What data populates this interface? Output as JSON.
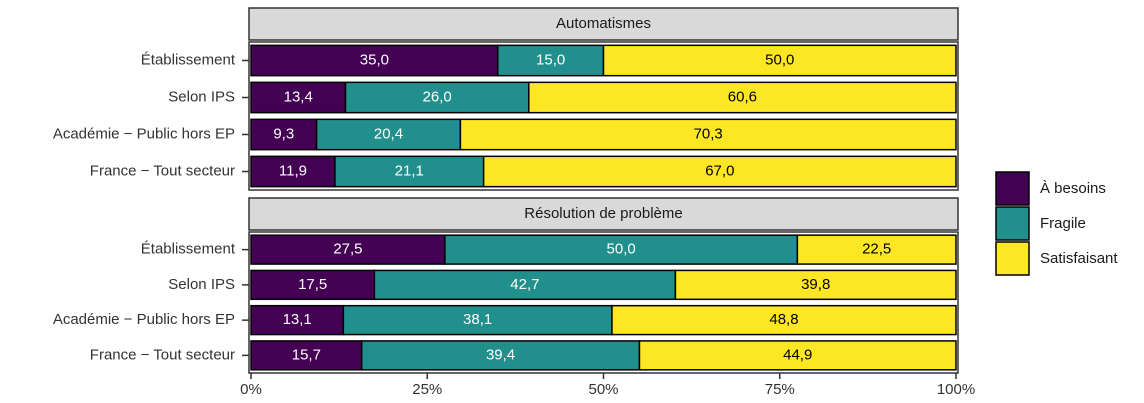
{
  "chart_data": {
    "type": "bar",
    "orientation": "horizontal",
    "stacked": true,
    "categories": [
      "Établissement",
      "Selon IPS",
      "Académie − Public hors EP",
      "France − Tout secteur"
    ],
    "series": [
      {
        "name": "À besoins",
        "color": "#440154",
        "label_color": "#ffffff"
      },
      {
        "name": "Fragile",
        "color": "#21908C",
        "label_color": "#ffffff"
      },
      {
        "name": "Satisfaisant",
        "color": "#FDE725",
        "label_color": "#000000"
      }
    ],
    "facets": [
      {
        "title": "Automatismes",
        "series": [
          {
            "values": [
              35.0,
              13.4,
              9.3,
              11.9
            ],
            "value_labels": [
              "35,0",
              "13,4",
              "9,3",
              "11,9"
            ]
          },
          {
            "values": [
              15.0,
              26.0,
              20.4,
              21.1
            ],
            "value_labels": [
              "15,0",
              "26,0",
              "20,4",
              "21,1"
            ]
          },
          {
            "values": [
              50.0,
              60.6,
              70.3,
              67.0
            ],
            "value_labels": [
              "50,0",
              "60,6",
              "70,3",
              "67,0"
            ]
          }
        ]
      },
      {
        "title": "Résolution de problème",
        "series": [
          {
            "values": [
              27.5,
              17.5,
              13.1,
              15.7
            ],
            "value_labels": [
              "27,5",
              "17,5",
              "13,1",
              "15,7"
            ]
          },
          {
            "values": [
              50.0,
              42.7,
              38.1,
              39.4
            ],
            "value_labels": [
              "50,0",
              "42,7",
              "38,1",
              "39,4"
            ]
          },
          {
            "values": [
              22.5,
              39.8,
              48.8,
              44.9
            ],
            "value_labels": [
              "22,5",
              "39,8",
              "48,8",
              "44,9"
            ]
          }
        ]
      }
    ],
    "xlim": [
      0,
      100
    ],
    "xticks": [
      {
        "value": 0,
        "label": "0%"
      },
      {
        "value": 25,
        "label": "25%"
      },
      {
        "value": 50,
        "label": "50%"
      },
      {
        "value": 75,
        "label": "75%"
      },
      {
        "value": 100,
        "label": "100%"
      }
    ],
    "legend": "right"
  }
}
